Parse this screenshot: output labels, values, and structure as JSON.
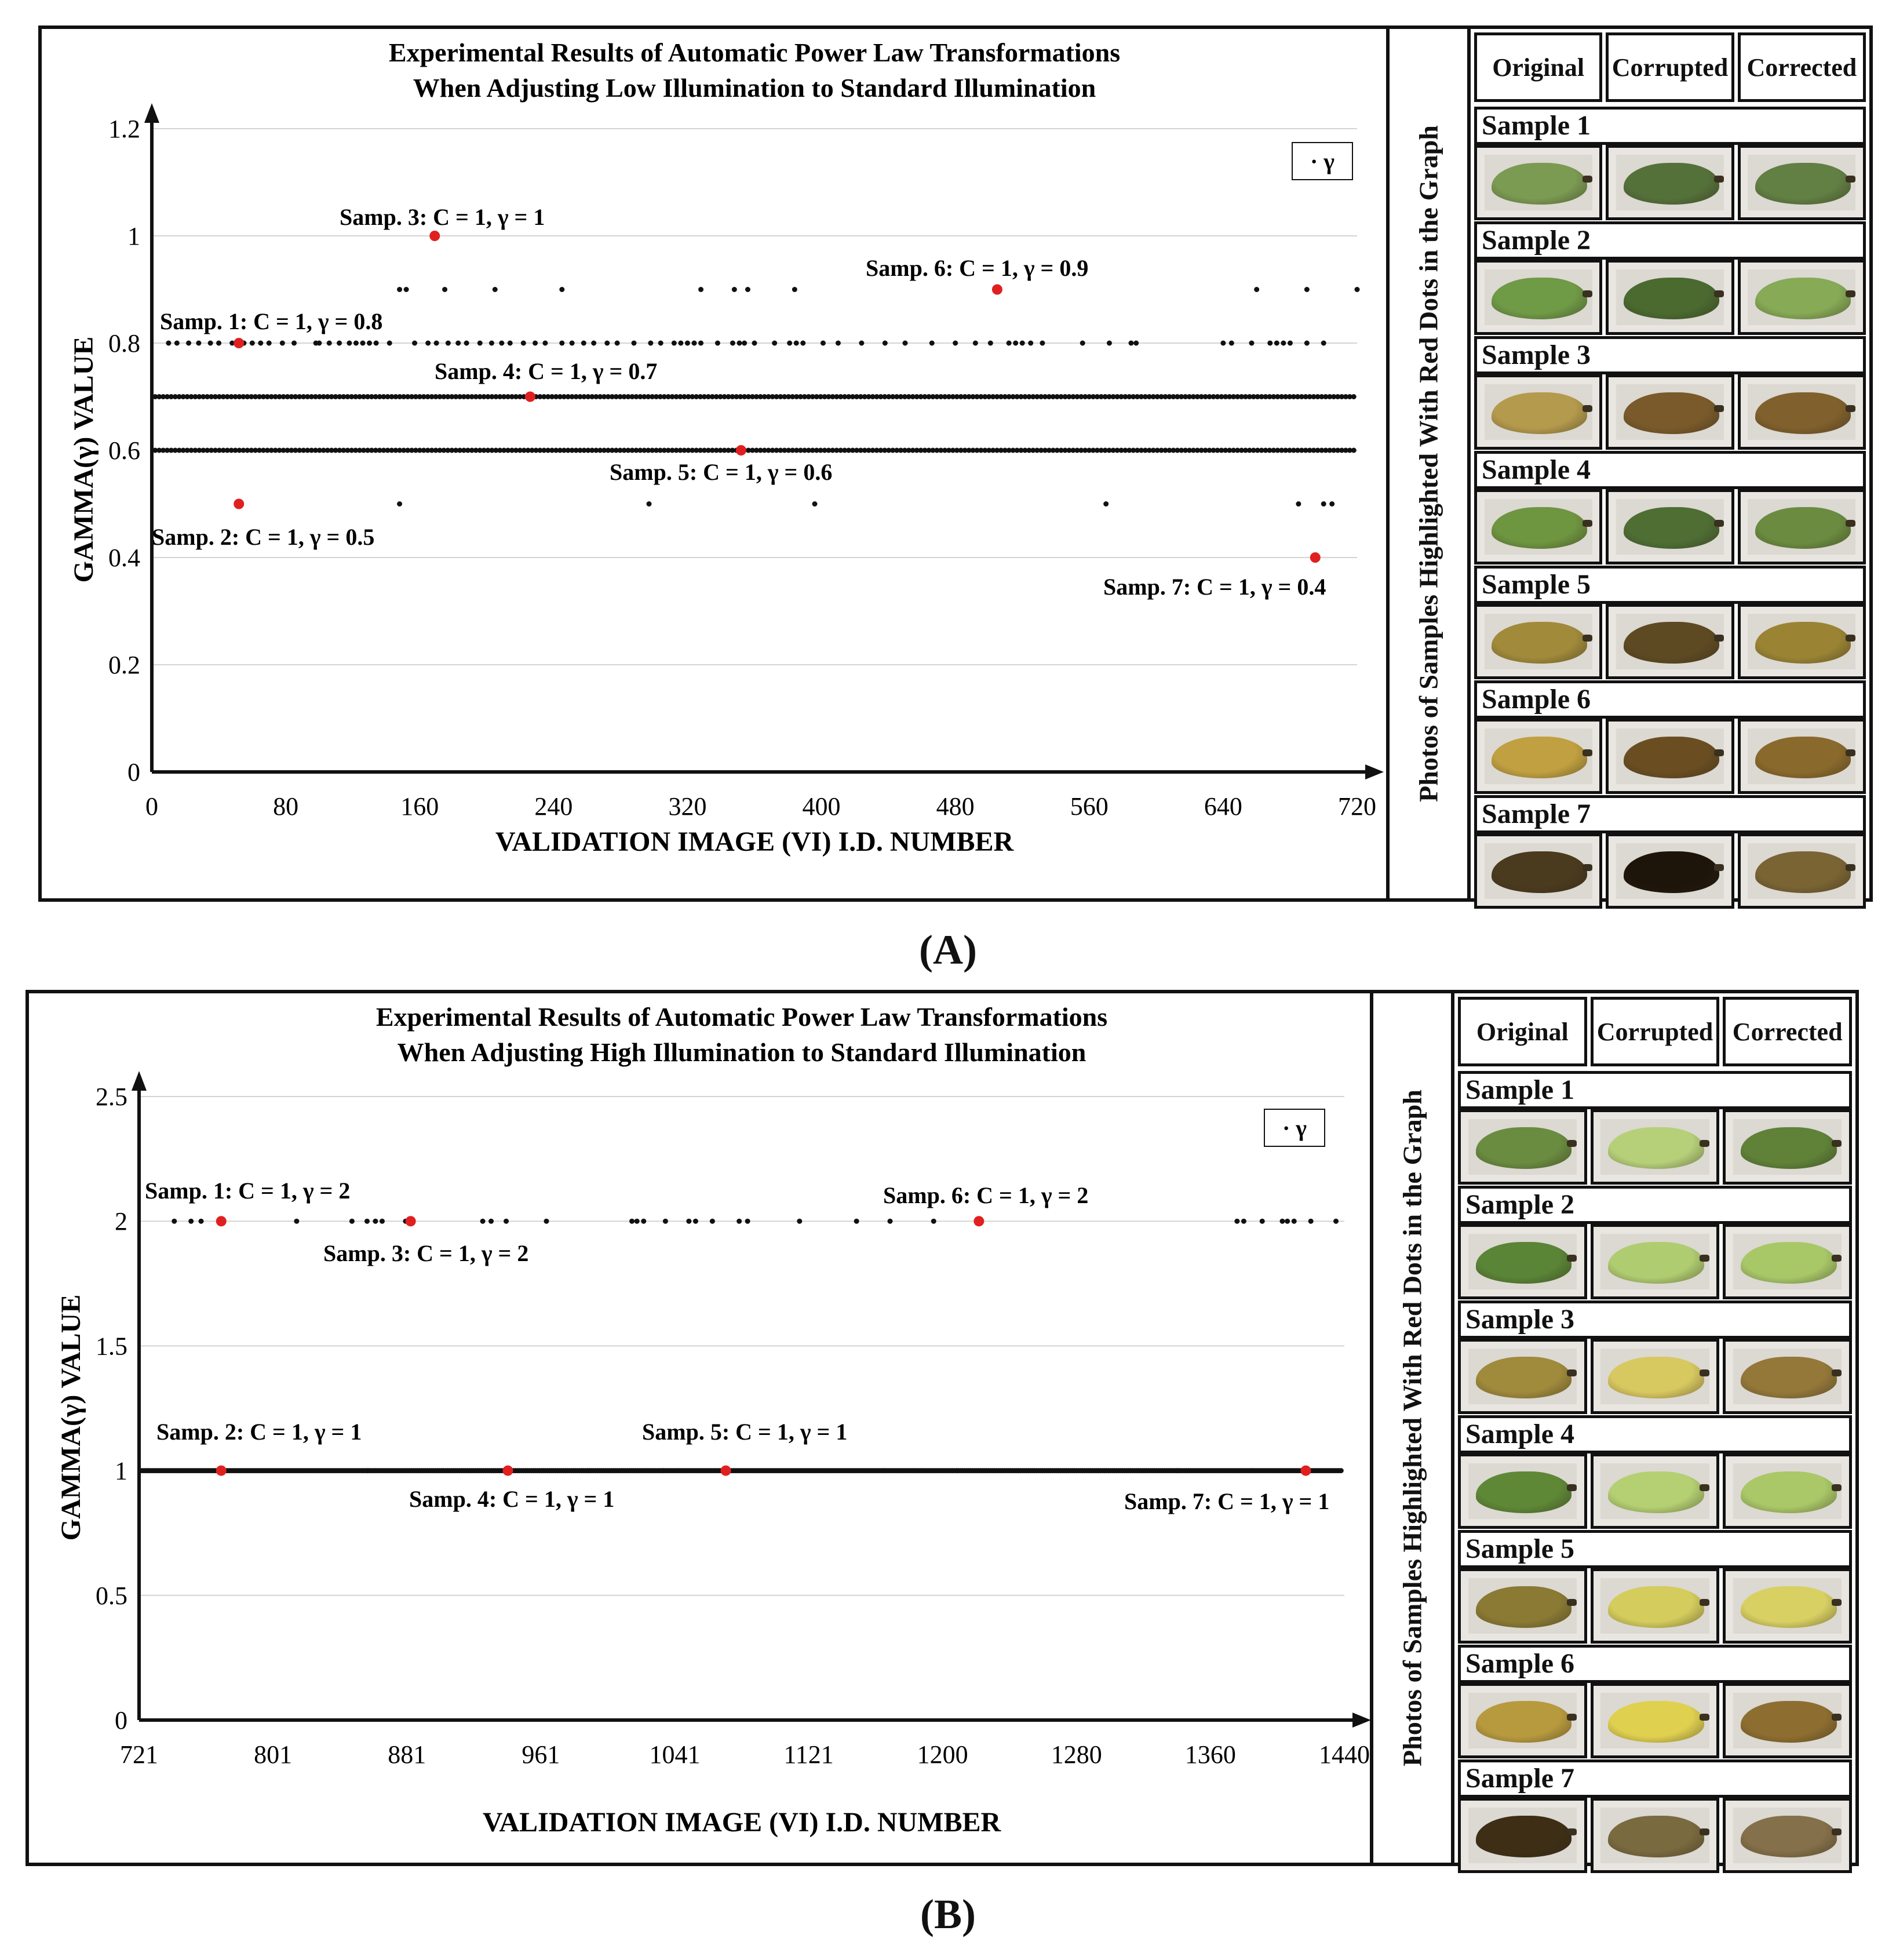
{
  "captions": {
    "a": "(A)",
    "b": "(B)"
  },
  "colors": {
    "dot": "#111111",
    "highlight": "#e02020",
    "grid": "#d4d4d4",
    "axis": "#111111"
  },
  "panels": [
    {
      "strip_label": "Photos of Samples Highlighted With Red Dots in the Graph",
      "headers": [
        "Original",
        "Corrupted",
        "Corrected"
      ],
      "samples": [
        {
          "label": "Sample 1",
          "colors": [
            "#7b9a52",
            "#55713a",
            "#627f44"
          ]
        },
        {
          "label": "Sample 2",
          "colors": [
            "#6f9a46",
            "#4a6a30",
            "#86aa56"
          ]
        },
        {
          "label": "Sample 3",
          "colors": [
            "#b49a4c",
            "#7a5a2a",
            "#80602c"
          ]
        },
        {
          "label": "Sample 4",
          "colors": [
            "#6e9540",
            "#4e6e34",
            "#6b8c40"
          ]
        },
        {
          "label": "Sample 5",
          "colors": [
            "#a18a3a",
            "#5e4a22",
            "#9a8434"
          ]
        },
        {
          "label": "Sample 6",
          "colors": [
            "#c0a040",
            "#6a4e22",
            "#8a6a2c"
          ]
        },
        {
          "label": "Sample 7",
          "colors": [
            "#4a3a1e",
            "#1e150a",
            "#7a6434"
          ]
        }
      ]
    },
    {
      "strip_label": "Photos of Samples Highlighted With Red Dots in the Graph",
      "headers": [
        "Original",
        "Corrupted",
        "Corrected"
      ],
      "samples": [
        {
          "label": "Sample 1",
          "colors": [
            "#6a8c40",
            "#b6d07a",
            "#5f8238"
          ]
        },
        {
          "label": "Sample 2",
          "colors": [
            "#5a8436",
            "#b0cc70",
            "#a8c868"
          ]
        },
        {
          "label": "Sample 3",
          "colors": [
            "#a08a3c",
            "#d8c860",
            "#94783a"
          ]
        },
        {
          "label": "Sample 4",
          "colors": [
            "#5e8836",
            "#b4d072",
            "#aac868"
          ]
        },
        {
          "label": "Sample 5",
          "colors": [
            "#8a7a34",
            "#d4cc5c",
            "#d8d062"
          ]
        },
        {
          "label": "Sample 6",
          "colors": [
            "#b89a3e",
            "#e0d050",
            "#8e6e30"
          ]
        },
        {
          "label": "Sample 7",
          "colors": [
            "#3e2e16",
            "#7a6a40",
            "#84704a"
          ]
        }
      ]
    }
  ],
  "chart_data": [
    {
      "type": "scatter",
      "title": "Experimental Results of  Automatic Power Law  Transformations",
      "subtitle": "When Adjusting Low Illumination to Standard Illumination",
      "xlabel": "VALIDATION IMAGE (VI) I.D. NUMBER",
      "ylabel": "GAMMA(γ) VALUE",
      "legend": "· γ",
      "legend_position": "top-right",
      "xlim": [
        0,
        720
      ],
      "ylim": [
        0,
        1.2
      ],
      "xticks": [
        "0",
        "80",
        "160",
        "240",
        "320",
        "400",
        "480",
        "560",
        "640",
        "720"
      ],
      "yticks": [
        "0",
        "0.2",
        "0.4",
        "0.6",
        "0.8",
        "1",
        "1.2"
      ],
      "ytick_values": [
        0,
        0.2,
        0.4,
        0.6,
        0.8,
        1.0,
        1.2
      ],
      "series": [
        {
          "name": "γ",
          "level": 0.9,
          "x": [
            148,
            152,
            175,
            205,
            245,
            328,
            348,
            356,
            384,
            660,
            690,
            720
          ]
        },
        {
          "name": "γ",
          "level": 0.8,
          "x": [
            10,
            15,
            22,
            28,
            35,
            40,
            48,
            55,
            60,
            65,
            70,
            78,
            85,
            98,
            100,
            106,
            112,
            118,
            122,
            126,
            130,
            134,
            142,
            157,
            165,
            170,
            177,
            183,
            188,
            196,
            203,
            209,
            214,
            222,
            229,
            235,
            245,
            251,
            258,
            264,
            272,
            278,
            288,
            298,
            304,
            312,
            316,
            320,
            324,
            328,
            338,
            347,
            351,
            354,
            360,
            372,
            381,
            385,
            389,
            401,
            410,
            424,
            438,
            450,
            466,
            480,
            492,
            501,
            512,
            516,
            520,
            525,
            532,
            556,
            572,
            585,
            588,
            640,
            645,
            657,
            668,
            672,
            676,
            680,
            690,
            700
          ]
        },
        {
          "name": "γ",
          "level": 0.7,
          "x_range": [
            2,
            718
          ],
          "count": 300
        },
        {
          "name": "γ",
          "level": 0.6,
          "x_range": [
            2,
            718
          ],
          "count": 300
        },
        {
          "name": "γ",
          "level": 0.5,
          "x": [
            52,
            148,
            297,
            396,
            570,
            685,
            700,
            705
          ]
        }
      ],
      "highlights": [
        {
          "x": 52,
          "y": 0.8,
          "label": "Samp. 1: C = 1, γ = 0.8"
        },
        {
          "x": 52,
          "y": 0.5,
          "label": "Samp. 2: C = 1, γ = 0.5"
        },
        {
          "x": 169,
          "y": 1.0,
          "label": "Samp. 3: C = 1, γ = 1"
        },
        {
          "x": 226,
          "y": 0.7,
          "label": "Samp. 4: C = 1, γ = 0.7"
        },
        {
          "x": 352,
          "y": 0.6,
          "label": "Samp. 5: C = 1, γ = 0.6"
        },
        {
          "x": 505,
          "y": 0.9,
          "label": "Samp. 6: C = 1, γ = 0.9"
        },
        {
          "x": 695,
          "y": 0.4,
          "label": "Samp. 7: C = 1, γ = 0.4"
        }
      ]
    },
    {
      "type": "scatter",
      "title": "Experimental Results of  Automatic Power Law  Transformations",
      "subtitle": "When Adjusting High Illumination to Standard Illumination",
      "xlabel": "VALIDATION IMAGE (VI) I.D. NUMBER",
      "ylabel": "GAMMA(γ) VALUE",
      "legend": "· γ",
      "legend_position": "top-right",
      "xlim": [
        721,
        1440
      ],
      "ylim": [
        0,
        2.5
      ],
      "xticks": [
        "721",
        "801",
        "881",
        "961",
        "1041",
        "1121",
        "1200",
        "1280",
        "1360",
        "1440"
      ],
      "yticks": [
        "0",
        "0.5",
        "1",
        "1.5",
        "2",
        "2.5"
      ],
      "ytick_values": [
        0,
        0.5,
        1.0,
        1.5,
        2.0,
        2.5
      ],
      "series": [
        {
          "name": "γ",
          "level": 2.0,
          "x": [
            742,
            752,
            758,
            770,
            815,
            848,
            857,
            862,
            866,
            880,
            883,
            926,
            931,
            940,
            964,
            1015,
            1018,
            1022,
            1035,
            1049,
            1053,
            1063,
            1079,
            1084,
            1115,
            1149,
            1169,
            1195,
            1221,
            1376,
            1380,
            1391,
            1403,
            1406,
            1410,
            1420,
            1435
          ]
        },
        {
          "name": "γ",
          "level": 1.0,
          "x_range": [
            722,
            1438
          ],
          "count": 600
        }
      ],
      "highlights": [
        {
          "x": 770,
          "y": 2.0,
          "label": "Samp. 1: C = 1, γ = 2"
        },
        {
          "x": 770,
          "y": 1.0,
          "label": "Samp. 2:  C = 1, γ = 1"
        },
        {
          "x": 883,
          "y": 2.0,
          "label": "Samp. 3:  C = 1, γ = 2"
        },
        {
          "x": 941,
          "y": 1.0,
          "label": "Samp. 4: C = 1, γ = 1"
        },
        {
          "x": 1071,
          "y": 1.0,
          "label": "Samp. 5:  C = 1, γ = 1"
        },
        {
          "x": 1222,
          "y": 2.0,
          "label": "Samp. 6:  C = 1, γ = 2"
        },
        {
          "x": 1417,
          "y": 1.0,
          "label": "Samp. 7:  C = 1, γ = 1"
        }
      ]
    }
  ]
}
